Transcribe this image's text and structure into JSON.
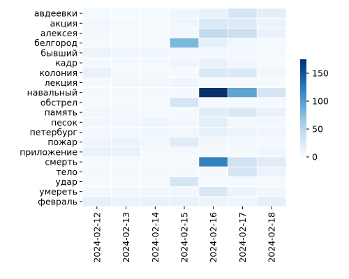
{
  "chart_data": {
    "type": "heatmap",
    "x": [
      "2024-02-12",
      "2024-02-13",
      "2024-02-14",
      "2024-02-15",
      "2024-02-16",
      "2024-02-17",
      "2024-02-18"
    ],
    "y": [
      "авдеевки",
      "акция",
      "алексея",
      "белгород",
      "бывший",
      "кадр",
      "колония",
      "лекция",
      "навальный",
      "обстрел",
      "память",
      "песок",
      "петербург",
      "пожар",
      "приложение",
      "смерть",
      "тело",
      "удар",
      "умереть",
      "февраль"
    ],
    "values": [
      [
        3,
        2,
        3,
        8,
        12,
        30,
        18
      ],
      [
        5,
        3,
        3,
        7,
        25,
        22,
        10
      ],
      [
        4,
        3,
        3,
        6,
        45,
        38,
        12
      ],
      [
        3,
        3,
        3,
        80,
        15,
        5,
        3
      ],
      [
        10,
        8,
        8,
        4,
        5,
        4,
        3
      ],
      [
        3,
        3,
        3,
        8,
        12,
        5,
        2
      ],
      [
        12,
        3,
        3,
        3,
        25,
        25,
        5
      ],
      [
        3,
        5,
        5,
        8,
        3,
        3,
        3
      ],
      [
        3,
        3,
        3,
        3,
        175,
        95,
        30
      ],
      [
        3,
        3,
        3,
        30,
        3,
        3,
        3
      ],
      [
        5,
        4,
        3,
        3,
        20,
        25,
        12
      ],
      [
        5,
        5,
        8,
        5,
        18,
        5,
        5
      ],
      [
        4,
        5,
        7,
        5,
        15,
        10,
        8
      ],
      [
        8,
        10,
        5,
        20,
        5,
        5,
        3
      ],
      [
        12,
        12,
        3,
        3,
        3,
        3,
        7
      ],
      [
        3,
        3,
        3,
        3,
        120,
        35,
        20
      ],
      [
        3,
        3,
        3,
        3,
        3,
        30,
        10
      ],
      [
        3,
        3,
        3,
        30,
        3,
        3,
        3
      ],
      [
        4,
        5,
        5,
        5,
        28,
        10,
        5
      ],
      [
        15,
        10,
        12,
        12,
        10,
        8,
        15
      ]
    ],
    "colorbar": {
      "min": 0,
      "max": 175,
      "ticks": [
        0,
        50,
        100,
        150
      ],
      "colormap": "Blues"
    },
    "grid": "white cell separators"
  }
}
